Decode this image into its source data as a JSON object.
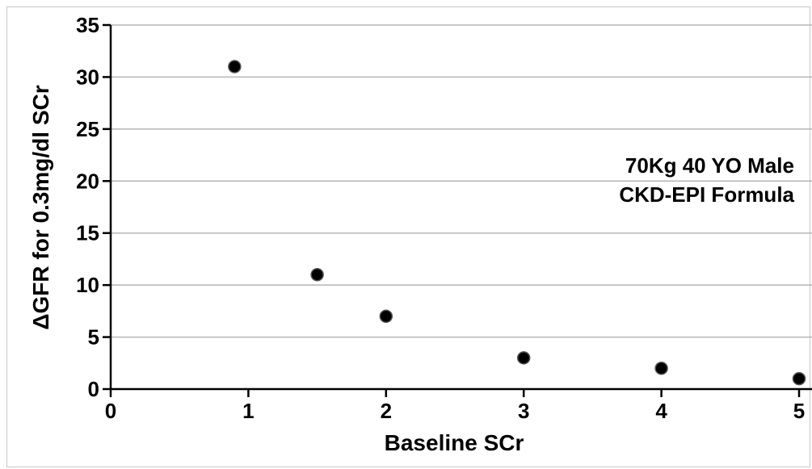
{
  "chart_data": {
    "type": "scatter",
    "xlabel": "Baseline SCr",
    "ylabel": "ΔGFR for 0.3mg/dl SCr",
    "annotation": [
      "70Kg 40 YO Male",
      "CKD-EPI Formula"
    ],
    "xlim": [
      0,
      5
    ],
    "ylim": [
      0,
      35
    ],
    "xticks": [
      0,
      1,
      2,
      3,
      4,
      5
    ],
    "yticks": [
      0,
      5,
      10,
      15,
      20,
      25,
      30,
      35
    ],
    "grid": "horizontal",
    "marker_color": "#000000",
    "points": [
      {
        "x": 0.9,
        "y": 31
      },
      {
        "x": 1.5,
        "y": 11
      },
      {
        "x": 2.0,
        "y": 7
      },
      {
        "x": 3.0,
        "y": 3
      },
      {
        "x": 4.0,
        "y": 2
      },
      {
        "x": 5.0,
        "y": 1
      }
    ]
  }
}
